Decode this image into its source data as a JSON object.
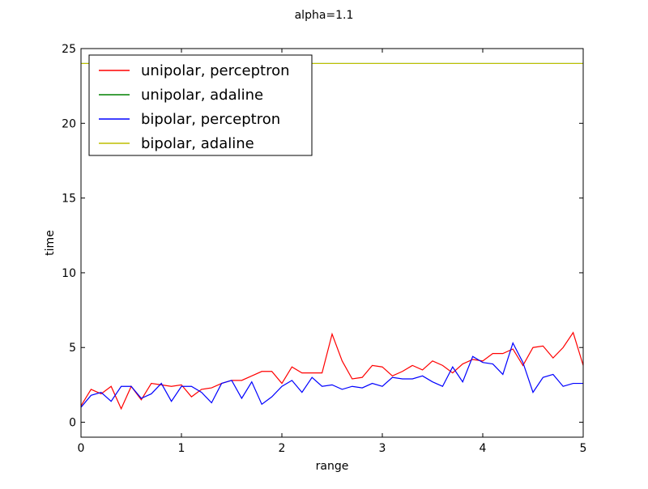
{
  "chart_data": {
    "type": "line",
    "title": "alpha=1.1",
    "xlabel": "range",
    "ylabel": "time",
    "xlim": [
      0,
      5
    ],
    "ylim": [
      -1,
      25
    ],
    "xticks": [
      0,
      1,
      2,
      3,
      4,
      5
    ],
    "yticks": [
      0,
      5,
      10,
      15,
      20,
      25
    ],
    "xtick_labels": [
      "0",
      "1",
      "2",
      "3",
      "4",
      "5"
    ],
    "ytick_labels": [
      "0",
      "5",
      "10",
      "15",
      "20",
      "25"
    ],
    "grid": false,
    "legend_position": "upper-left",
    "x": [
      0,
      0.1,
      0.2,
      0.3,
      0.4,
      0.5,
      0.6,
      0.7,
      0.8,
      0.9,
      1.0,
      1.1,
      1.2,
      1.3,
      1.4,
      1.5,
      1.6,
      1.7,
      1.8,
      1.9,
      2.0,
      2.1,
      2.2,
      2.3,
      2.4,
      2.5,
      2.6,
      2.7,
      2.8,
      2.9,
      3.0,
      3.1,
      3.2,
      3.3,
      3.4,
      3.5,
      3.6,
      3.7,
      3.8,
      3.9,
      4.0,
      4.1,
      4.2,
      4.3,
      4.4,
      4.5,
      4.6,
      4.7,
      4.8,
      4.9,
      5.0
    ],
    "series": [
      {
        "name": "unipolar, perceptron",
        "color": "#ff0000",
        "values": [
          1.1,
          2.2,
          1.9,
          2.4,
          0.9,
          2.4,
          1.5,
          2.6,
          2.5,
          2.4,
          2.5,
          1.7,
          2.2,
          2.3,
          2.6,
          2.8,
          2.8,
          3.1,
          3.4,
          3.4,
          2.6,
          3.7,
          3.3,
          3.3,
          3.3,
          5.9,
          4.1,
          2.9,
          3.0,
          3.8,
          3.7,
          3.1,
          3.4,
          3.8,
          3.5,
          4.1,
          3.8,
          3.3,
          3.9,
          4.2,
          4.1,
          4.6,
          4.6,
          4.9,
          3.8,
          5.0,
          5.1,
          4.3,
          5.0,
          6.0,
          3.8
        ]
      },
      {
        "name": "unipolar, adaline",
        "color": "#008000",
        "values": [
          24.0,
          24.0,
          24.0,
          24.0,
          24.0,
          24.0,
          24.0,
          24.0,
          24.0,
          24.0,
          24.0,
          24.0,
          24.0,
          24.0,
          24.0,
          24.0,
          24.0,
          24.0,
          24.0,
          24.0,
          24.0,
          24.0,
          24.0,
          24.0,
          24.0,
          24.0,
          24.0,
          24.0,
          24.0,
          24.0,
          24.0,
          24.0,
          24.0,
          24.0,
          24.0,
          24.0,
          24.0,
          24.0,
          24.0,
          24.0,
          24.0,
          24.0,
          24.0,
          24.0,
          24.0,
          24.0,
          24.0,
          24.0,
          24.0,
          24.0,
          24.0
        ]
      },
      {
        "name": "bipolar, perceptron",
        "color": "#0000ff",
        "values": [
          1.0,
          1.8,
          2.0,
          1.4,
          2.4,
          2.4,
          1.6,
          1.9,
          2.6,
          1.4,
          2.4,
          2.4,
          2.0,
          1.3,
          2.6,
          2.8,
          1.6,
          2.7,
          1.2,
          1.7,
          2.4,
          2.8,
          2.0,
          3.0,
          2.4,
          2.5,
          2.2,
          2.4,
          2.3,
          2.6,
          2.4,
          3.0,
          2.9,
          2.9,
          3.1,
          2.7,
          2.4,
          3.7,
          2.7,
          4.4,
          4.0,
          3.9,
          3.2,
          5.3,
          4.0,
          2.0,
          3.0,
          3.2,
          2.4,
          2.6,
          2.6
        ]
      },
      {
        "name": "bipolar, adaline",
        "color": "#bfbf00",
        "values": [
          24.0,
          24.0,
          24.0,
          24.0,
          24.0,
          24.0,
          24.0,
          24.0,
          24.0,
          24.0,
          24.0,
          24.0,
          24.0,
          24.0,
          24.0,
          24.0,
          24.0,
          24.0,
          24.0,
          24.0,
          24.0,
          24.0,
          24.0,
          24.0,
          24.0,
          24.0,
          24.0,
          24.0,
          24.0,
          24.0,
          24.0,
          24.0,
          24.0,
          24.0,
          24.0,
          24.0,
          24.0,
          24.0,
          24.0,
          24.0,
          24.0,
          24.0,
          24.0,
          24.0,
          24.0,
          24.0,
          24.0,
          24.0,
          24.0,
          24.0,
          24.0
        ]
      }
    ]
  }
}
